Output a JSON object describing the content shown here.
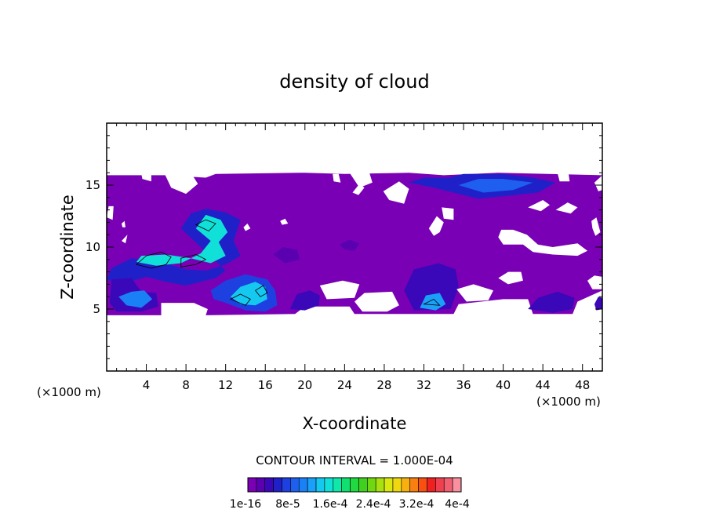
{
  "chart_data": {
    "type": "heatmap",
    "title": "density of cloud",
    "xlabel": "X-coordinate",
    "ylabel": "Z-coordinate",
    "x_unit": "(×1000 m)",
    "y_unit": "(×1000 m)",
    "xlim": [
      0,
      50
    ],
    "ylim": [
      0,
      20
    ],
    "x_ticks": [
      4,
      8,
      12,
      16,
      20,
      24,
      28,
      32,
      36,
      40,
      44,
      48
    ],
    "y_ticks": [
      5,
      10,
      15
    ],
    "contour_interval_text": "CONTOUR INTERVAL = 1.000E-04",
    "colorbar": {
      "colors": [
        "#7a00b5",
        "#5a00b0",
        "#3a08b8",
        "#2020c8",
        "#1e40e0",
        "#1e5ff0",
        "#1a80f5",
        "#1aa0f8",
        "#14c8f0",
        "#10e0d8",
        "#10e8a8",
        "#10e070",
        "#20d840",
        "#40d020",
        "#70d810",
        "#a8e010",
        "#d8e810",
        "#f0d810",
        "#f8b010",
        "#f88010",
        "#f85010",
        "#f02020",
        "#f04050",
        "#f06070",
        "#f890a0"
      ],
      "labels": [
        "1e-16",
        "8e-5",
        "1.6e-4",
        "2.4e-4",
        "3.2e-4",
        "4e-4"
      ]
    },
    "field_regions": [
      {
        "level": 0,
        "poly": [
          [
            0,
            4.5
          ],
          [
            5.5,
            4.5
          ],
          [
            5.5,
            5.5
          ],
          [
            8,
            5.5
          ],
          [
            10,
            4.5
          ],
          [
            19,
            4.6
          ],
          [
            20,
            5.2
          ],
          [
            24.5,
            5.2
          ],
          [
            25,
            4.6
          ],
          [
            35,
            4.6
          ],
          [
            35.5,
            5.4
          ],
          [
            40,
            5.8
          ],
          [
            42.5,
            5.8
          ],
          [
            43,
            4.6
          ],
          [
            47,
            4.6
          ],
          [
            47.5,
            5.6
          ],
          [
            50,
            6.5
          ],
          [
            50,
            15.8
          ],
          [
            39.5,
            16
          ],
          [
            34,
            15.8
          ],
          [
            30.5,
            16
          ],
          [
            24,
            15.9
          ],
          [
            20,
            16
          ],
          [
            11,
            15.9
          ],
          [
            10,
            15.6
          ],
          [
            6,
            15.8
          ],
          [
            0,
            15.8
          ]
        ]
      },
      {
        "level": 3,
        "poly": [
          [
            7.5,
            11.5
          ],
          [
            8.5,
            12.7
          ],
          [
            10,
            13.1
          ],
          [
            12,
            12.8
          ],
          [
            13.5,
            12.2
          ],
          [
            12.8,
            10.5
          ],
          [
            13.5,
            9.3
          ],
          [
            12,
            8.6
          ],
          [
            10,
            8.1
          ],
          [
            8,
            8.2
          ],
          [
            5.5,
            8.8
          ],
          [
            2.5,
            9.1
          ],
          [
            0.5,
            8.3
          ],
          [
            0,
            7.4
          ],
          [
            1.5,
            7.0
          ],
          [
            4,
            7.6
          ],
          [
            6,
            7.2
          ],
          [
            8,
            6.9
          ],
          [
            11,
            7.5
          ],
          [
            12,
            8.1
          ]
        ]
      },
      {
        "level": 9,
        "poly": [
          [
            9,
            11.5
          ],
          [
            10,
            12.6
          ],
          [
            11.5,
            12.2
          ],
          [
            12.2,
            11.2
          ],
          [
            11.3,
            10.4
          ],
          [
            12,
            9.3
          ],
          [
            10.5,
            8.7
          ],
          [
            8.5,
            9.1
          ],
          [
            6,
            9.4
          ],
          [
            3.5,
            9.3
          ],
          [
            3,
            8.8
          ],
          [
            5,
            8.5
          ],
          [
            7.5,
            8.7
          ],
          [
            9.5,
            9.5
          ],
          [
            10.5,
            10.5
          ]
        ]
      },
      {
        "level": 2,
        "poly": [
          [
            0.5,
            7.4
          ],
          [
            2.5,
            7.5
          ],
          [
            3.5,
            6.4
          ],
          [
            5,
            6.3
          ],
          [
            5.2,
            5.2
          ],
          [
            3.5,
            4.8
          ],
          [
            1,
            4.8
          ],
          [
            0.3,
            5.5
          ]
        ]
      },
      {
        "level": 6,
        "poly": [
          [
            1.2,
            6.0
          ],
          [
            2.5,
            6.4
          ],
          [
            3.8,
            6.5
          ],
          [
            4.6,
            5.8
          ],
          [
            3.5,
            5.1
          ],
          [
            2,
            5.3
          ]
        ]
      },
      {
        "level": 4,
        "poly": [
          [
            10.5,
            6.5
          ],
          [
            12,
            7.3
          ],
          [
            14,
            7.8
          ],
          [
            16.2,
            7.4
          ],
          [
            17,
            6.5
          ],
          [
            17.2,
            5.3
          ],
          [
            16,
            4.8
          ],
          [
            14,
            4.9
          ],
          [
            12,
            5.5
          ],
          [
            10.8,
            5.8
          ]
        ]
      },
      {
        "level": 8,
        "poly": [
          [
            12.5,
            6.0
          ],
          [
            13.5,
            6.8
          ],
          [
            15,
            7.2
          ],
          [
            16,
            6.8
          ],
          [
            16.2,
            5.8
          ],
          [
            15,
            5.3
          ],
          [
            13.5,
            5.4
          ]
        ]
      },
      {
        "level": 2,
        "poly": [
          [
            18.5,
            5.0
          ],
          [
            19.2,
            6.2
          ],
          [
            20.5,
            6.5
          ],
          [
            21.5,
            6.1
          ],
          [
            21.4,
            5.3
          ],
          [
            20,
            4.9
          ]
        ]
      },
      {
        "level": 2,
        "poly": [
          [
            30,
            6.5
          ],
          [
            31,
            8.2
          ],
          [
            33.5,
            8.7
          ],
          [
            35.2,
            8.2
          ],
          [
            35.5,
            6.8
          ],
          [
            34.7,
            5.0
          ],
          [
            31,
            4.9
          ]
        ]
      },
      {
        "level": 7,
        "poly": [
          [
            31.6,
            5.1
          ],
          [
            32.2,
            6.1
          ],
          [
            33.6,
            6.3
          ],
          [
            34.2,
            5.4
          ],
          [
            33.2,
            4.9
          ]
        ]
      },
      {
        "level": 3,
        "poly": [
          [
            30.5,
            15.2
          ],
          [
            32,
            15.6
          ],
          [
            34.5,
            15.6
          ],
          [
            36,
            15.9
          ],
          [
            40,
            15.9
          ],
          [
            43,
            15.6
          ],
          [
            45.3,
            15.2
          ],
          [
            43.5,
            14.4
          ],
          [
            40,
            14.1
          ],
          [
            37.5,
            13.9
          ],
          [
            35.5,
            14.3
          ],
          [
            33,
            14.8
          ]
        ]
      },
      {
        "level": 5,
        "poly": [
          [
            35.5,
            15.0
          ],
          [
            37.5,
            15.5
          ],
          [
            40,
            15.5
          ],
          [
            43,
            15.2
          ],
          [
            41,
            14.6
          ],
          [
            38,
            14.4
          ]
        ]
      },
      {
        "level": 2,
        "poly": [
          [
            42.5,
            5.0
          ],
          [
            43.5,
            5.9
          ],
          [
            45.5,
            6.4
          ],
          [
            47.2,
            5.9
          ],
          [
            47,
            5.0
          ],
          [
            45,
            4.7
          ]
        ]
      },
      {
        "level": 2,
        "poly": [
          [
            49.2,
            5.4
          ],
          [
            49.6,
            6.0
          ],
          [
            50,
            5.9
          ],
          [
            50,
            5.0
          ],
          [
            49.4,
            4.9
          ]
        ]
      },
      {
        "level": 1,
        "poly": [
          [
            23.5,
            10.2
          ],
          [
            24.5,
            10.6
          ],
          [
            25.5,
            10.3
          ],
          [
            25,
            9.7
          ],
          [
            24,
            9.8
          ]
        ]
      },
      {
        "level": 1,
        "poly": [
          [
            16.8,
            9.4
          ],
          [
            17.8,
            10.0
          ],
          [
            19.2,
            9.8
          ],
          [
            19.5,
            9.0
          ],
          [
            18,
            8.7
          ]
        ]
      }
    ],
    "gaps": [
      [
        [
          8,
          4.5
        ],
        [
          10,
          4.5
        ],
        [
          10.2,
          5.0
        ],
        [
          8.8,
          5.5
        ],
        [
          8,
          5.5
        ]
      ],
      [
        [
          21.5,
          6.9
        ],
        [
          23.8,
          7.3
        ],
        [
          25.5,
          7.0
        ],
        [
          25,
          5.9
        ],
        [
          22.2,
          5.8
        ]
      ],
      [
        [
          25,
          5.6
        ],
        [
          26,
          6.3
        ],
        [
          28.8,
          6.4
        ],
        [
          29.5,
          5.3
        ],
        [
          28.3,
          4.8
        ],
        [
          25.8,
          4.8
        ]
      ],
      [
        [
          35.3,
          6.6
        ],
        [
          37,
          7.0
        ],
        [
          39,
          6.5
        ],
        [
          38.5,
          5.7
        ],
        [
          36.3,
          5.6
        ]
      ],
      [
        [
          39.5,
          7.5
        ],
        [
          40.5,
          8.0
        ],
        [
          41.8,
          8.0
        ],
        [
          42,
          7.3
        ],
        [
          40.5,
          7.0
        ]
      ],
      [
        [
          48.5,
          7.3
        ],
        [
          49.2,
          7.7
        ],
        [
          50,
          7.6
        ],
        [
          50,
          6.6
        ],
        [
          49,
          6.6
        ]
      ],
      [
        [
          0,
          12.4
        ],
        [
          0.2,
          13.3
        ],
        [
          0.7,
          13.3
        ],
        [
          0.6,
          12.2
        ]
      ],
      [
        [
          1.5,
          10.5
        ],
        [
          2.1,
          11.0
        ],
        [
          1.9,
          10.3
        ]
      ],
      [
        [
          5.8,
          16
        ],
        [
          8.5,
          16
        ],
        [
          9.2,
          15.1
        ],
        [
          8,
          14.3
        ],
        [
          6.5,
          14.8
        ]
      ],
      [
        [
          3.5,
          15.9
        ],
        [
          4.5,
          15.9
        ],
        [
          4.5,
          15.3
        ],
        [
          3.6,
          15.5
        ]
      ],
      [
        [
          24.5,
          16
        ],
        [
          26.5,
          16
        ],
        [
          26.8,
          15.2
        ],
        [
          25.5,
          14.8
        ]
      ],
      [
        [
          24.8,
          14.4
        ],
        [
          25.5,
          15.1
        ],
        [
          26,
          14.8
        ],
        [
          25.4,
          14.2
        ]
      ],
      [
        [
          22.8,
          15.9
        ],
        [
          23.4,
          15.9
        ],
        [
          23.6,
          15.2
        ],
        [
          22.9,
          15.3
        ]
      ],
      [
        [
          27.9,
          14.5
        ],
        [
          29.5,
          15.3
        ],
        [
          30.5,
          14.7
        ],
        [
          30,
          13.5
        ],
        [
          28.5,
          13.8
        ]
      ],
      [
        [
          42.5,
          13.2
        ],
        [
          44,
          13.8
        ],
        [
          44.7,
          13.4
        ],
        [
          43.8,
          12.9
        ]
      ],
      [
        [
          45.3,
          13.0
        ],
        [
          46.5,
          13.6
        ],
        [
          47.5,
          13.2
        ],
        [
          46.8,
          12.7
        ]
      ],
      [
        [
          45.5,
          15.9
        ],
        [
          46.6,
          15.9
        ],
        [
          46.7,
          15.3
        ],
        [
          45.7,
          15.3
        ]
      ],
      [
        [
          49.2,
          15.2
        ],
        [
          50,
          15.8
        ],
        [
          50,
          14.6
        ],
        [
          49.6,
          14.5
        ]
      ],
      [
        [
          48.9,
          12.1
        ],
        [
          49.4,
          12.4
        ],
        [
          49.8,
          11.2
        ],
        [
          49.3,
          10.9
        ],
        [
          49,
          11.5
        ]
      ],
      [
        [
          39.5,
          10.8
        ],
        [
          39.8,
          11.4
        ],
        [
          41,
          11.4
        ],
        [
          42.4,
          11.0
        ],
        [
          43.5,
          10.2
        ],
        [
          45,
          10.0
        ],
        [
          47.5,
          10.3
        ],
        [
          48.5,
          9.7
        ],
        [
          47.5,
          9.3
        ],
        [
          45,
          9.4
        ],
        [
          43,
          9.6
        ],
        [
          42,
          10.2
        ],
        [
          40,
          10.2
        ]
      ],
      [
        [
          33.8,
          13.2
        ],
        [
          35,
          13.1
        ],
        [
          35,
          12.2
        ],
        [
          34,
          12.3
        ]
      ],
      [
        [
          32.5,
          11.5
        ],
        [
          33.3,
          12.5
        ],
        [
          34,
          12.0
        ],
        [
          33.6,
          11.2
        ],
        [
          33,
          10.9
        ]
      ],
      [
        [
          1.5,
          11.9
        ],
        [
          1.8,
          12.1
        ],
        [
          1.9,
          11.6
        ],
        [
          1.6,
          11.6
        ]
      ],
      [
        [
          13.8,
          11.6
        ],
        [
          14.2,
          11.9
        ],
        [
          14.5,
          11.5
        ],
        [
          14.0,
          11.3
        ]
      ],
      [
        [
          17.5,
          12.1
        ],
        [
          18,
          12.3
        ],
        [
          18.3,
          11.9
        ],
        [
          17.7,
          11.8
        ]
      ]
    ],
    "contour_lines": [
      [
        [
          3,
          8.6
        ],
        [
          4.5,
          8.3
        ],
        [
          6,
          8.6
        ],
        [
          6.5,
          9.2
        ],
        [
          5.5,
          9.6
        ],
        [
          4,
          9.3
        ]
      ],
      [
        [
          7.5,
          8.4
        ],
        [
          9,
          8.6
        ],
        [
          10,
          9.0
        ],
        [
          9,
          9.4
        ],
        [
          7.5,
          9.1
        ]
      ],
      [
        [
          12.5,
          5.8
        ],
        [
          13.5,
          6.2
        ],
        [
          14.5,
          5.8
        ],
        [
          14,
          5.3
        ]
      ],
      [
        [
          15,
          6.5
        ],
        [
          15.8,
          6.9
        ],
        [
          16.2,
          6.3
        ],
        [
          15.5,
          6.0
        ]
      ],
      [
        [
          9,
          11.8
        ],
        [
          10,
          12.2
        ],
        [
          11,
          11.9
        ],
        [
          10.3,
          11.3
        ]
      ],
      [
        [
          32,
          5.4
        ],
        [
          33,
          5.8
        ],
        [
          33.6,
          5.3
        ]
      ]
    ]
  }
}
